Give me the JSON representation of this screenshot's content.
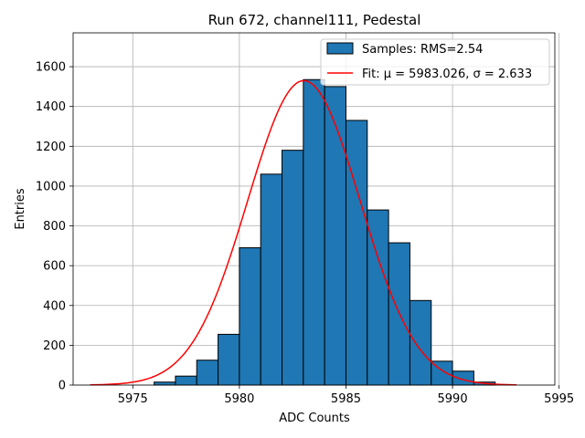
{
  "chart_data": {
    "type": "bar",
    "title": "Run 672, channel111, Pedestal",
    "xlabel": "ADC Counts",
    "ylabel": "Entries",
    "xlim": [
      5972.2,
      5994.8
    ],
    "ylim": [
      0,
      1770
    ],
    "xticks": [
      5975,
      5980,
      5985,
      5990,
      5995
    ],
    "yticks": [
      0,
      200,
      400,
      600,
      800,
      1000,
      1200,
      1400,
      1600
    ],
    "grid": true,
    "legend_position": "top-right",
    "colors": {
      "bars": "#1f77b4",
      "bar_edge": "#000000",
      "fit": "#ff0000",
      "grid": "#b0b0b0"
    },
    "series": [
      {
        "name": "Samples: RMS=2.54",
        "kind": "histogram",
        "bin_edges": [
          5976,
          5977,
          5978,
          5979,
          5980,
          5981,
          5982,
          5983,
          5984,
          5985,
          5986,
          5987,
          5988,
          5989,
          5990,
          5991,
          5992
        ],
        "values": [
          15,
          45,
          125,
          255,
          690,
          1060,
          1180,
          1535,
          1500,
          1330,
          880,
          715,
          425,
          120,
          70,
          15
        ]
      },
      {
        "name": "Fit: μ = 5983.026, σ = 2.633",
        "kind": "gaussian",
        "mu": 5983.026,
        "sigma": 2.633,
        "amplitude": 1530,
        "x_range": [
          5973,
          5993
        ]
      }
    ]
  }
}
